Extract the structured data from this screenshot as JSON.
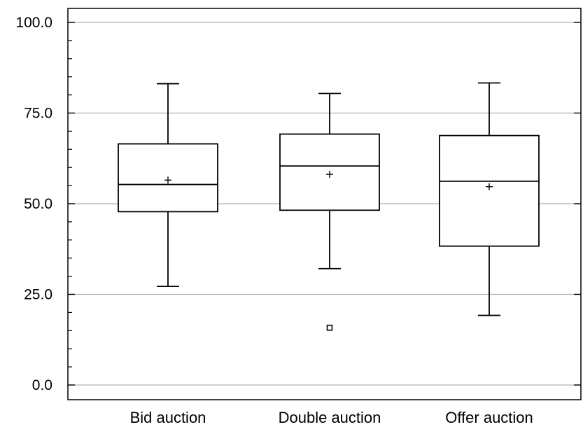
{
  "chart_data": {
    "type": "box",
    "title": "",
    "xlabel": "",
    "ylabel": "",
    "ylim": [
      0,
      100
    ],
    "yticks": [
      {
        "value": 0,
        "label": "0.0"
      },
      {
        "value": 25,
        "label": "25.0"
      },
      {
        "value": 50,
        "label": "50.0"
      },
      {
        "value": 75,
        "label": "75.0"
      },
      {
        "value": 100,
        "label": "100.0"
      }
    ],
    "minor_tick_step": 5,
    "grid": true,
    "categories": [
      "Bid auction",
      "Double auction",
      "Offer auction"
    ],
    "boxes": [
      {
        "category": "Bid auction",
        "whisker_low": 27.2,
        "q1": 47.8,
        "median": 55.3,
        "q3": 66.5,
        "whisker_high": 83.1,
        "mean": 56.5,
        "outliers": []
      },
      {
        "category": "Double auction",
        "whisker_low": 32.1,
        "q1": 48.2,
        "median": 60.4,
        "q3": 69.2,
        "whisker_high": 80.4,
        "mean": 58.1,
        "outliers": [
          15.8
        ]
      },
      {
        "category": "Offer auction",
        "whisker_low": 19.2,
        "q1": 38.3,
        "median": 56.2,
        "q3": 68.8,
        "whisker_high": 83.3,
        "mean": 54.7,
        "outliers": []
      }
    ],
    "colors": {
      "box_line": "#000000",
      "grid": "#b0b0b0",
      "background": "#ffffff"
    }
  }
}
